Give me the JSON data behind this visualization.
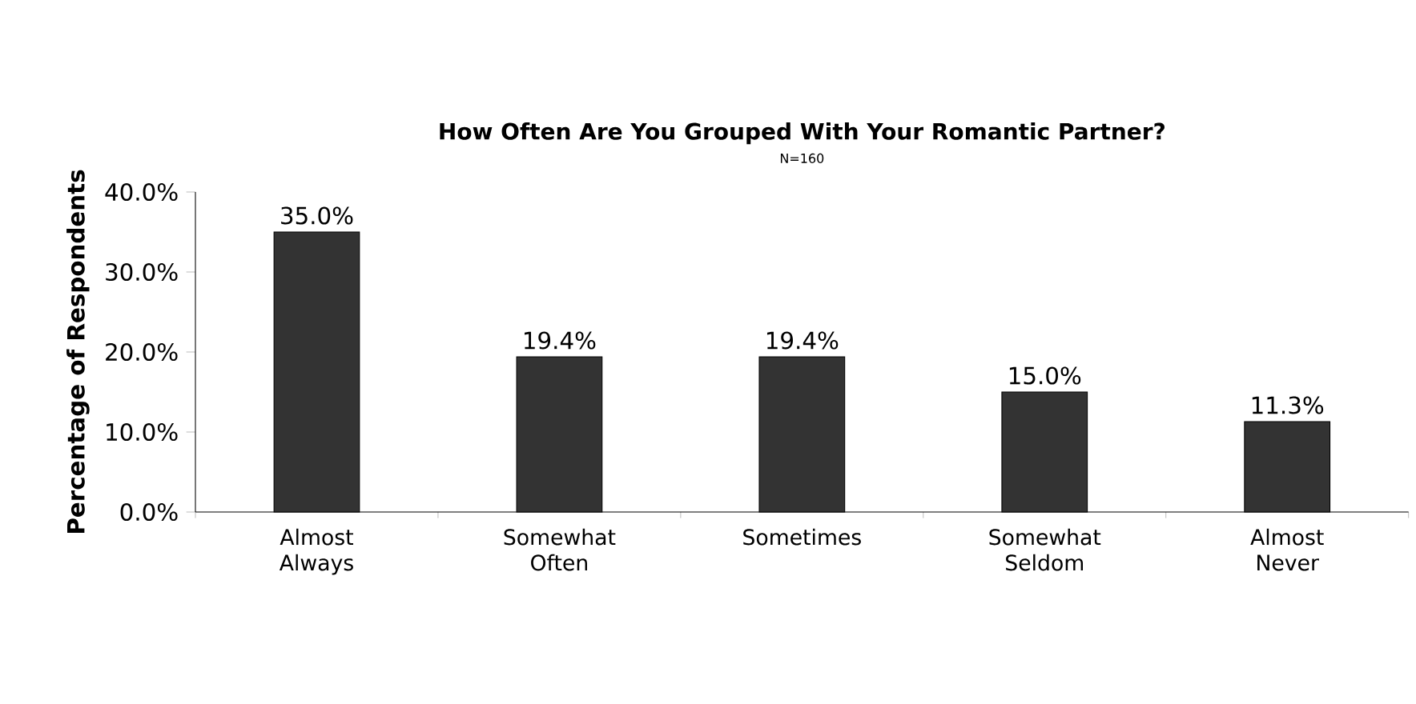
{
  "chart_data": {
    "type": "bar",
    "title": "How Often Are You Grouped With Your Romantic Partner?",
    "subtitle": "N=160",
    "ylabel": "Percentage of Respondents",
    "categories": [
      "Almost Always",
      "Somewhat Often",
      "Sometimes",
      "Somewhat Seldom",
      "Almost Never"
    ],
    "values": [
      35.0,
      19.4,
      19.4,
      15.0,
      11.3
    ],
    "value_labels": [
      "35.0%",
      "19.4%",
      "19.4%",
      "15.0%",
      "11.3%"
    ],
    "color": "#333333",
    "ylim": [
      0,
      40
    ],
    "yticks": [
      {
        "value": 0,
        "label": "0.0%"
      },
      {
        "value": 10,
        "label": "10.0%"
      },
      {
        "value": 20,
        "label": "20.0%"
      },
      {
        "value": 30,
        "label": "30.0%"
      },
      {
        "value": 40,
        "label": "40.0%"
      }
    ]
  }
}
